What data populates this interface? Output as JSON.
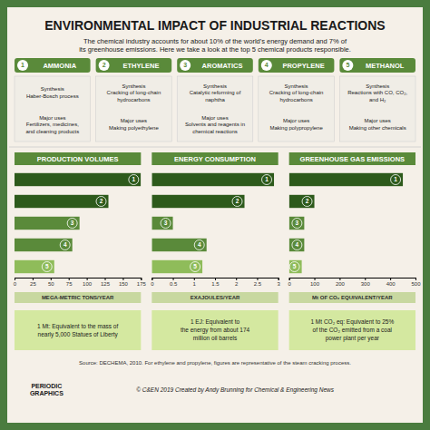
{
  "title": "ENVIRONMENTAL IMPACT OF INDUSTRIAL REACTIONS",
  "subtitle": "The chemical industry accounts for about 10% of the world's energy demand and 7% of\nits greenhouse emissions. Here we take a look at the top 5 chemical products responsible.",
  "chemicals": [
    {
      "number": 1,
      "name": "AMMONIA",
      "synthesis": "Synthesis\nHaber-Bosch process",
      "uses": "Major uses\nFertilizers, medicines,\nand cleaning products"
    },
    {
      "number": 2,
      "name": "ETHYLENE",
      "synthesis": "Synthesis\nCracking of long-chain\nhydrocarbons",
      "uses": "Major uses\nMaking polyethylene"
    },
    {
      "number": 3,
      "name": "AROMATICS",
      "synthesis": "Synthesis\nCatalytic reforming of\nnaphtha",
      "uses": "Major uses\nSolvents and reagents in\nchemical reactions"
    },
    {
      "number": 4,
      "name": "PROPYLENE",
      "synthesis": "Synthesis\nCracking of long-chain\nhydrocarbons",
      "uses": "Major uses\nMaking polypropylene"
    },
    {
      "number": 5,
      "name": "METHANOL",
      "synthesis": "Synthesis\nReactions with CO, CO₂,\nand H₂",
      "uses": "Major uses\nMaking other chemicals"
    }
  ],
  "chart_data": [
    {
      "type": "bar",
      "orientation": "horizontal",
      "title": "PRODUCTION VOLUMES",
      "xlabel": "MEGA-METRIC TONS/YEAR",
      "categories": [
        "1",
        "2",
        "3",
        "4",
        "5"
      ],
      "values": [
        175,
        130,
        90,
        80,
        55
      ],
      "colors": [
        "#2d5a1b",
        "#2d5a1b",
        "#5a8a3a",
        "#5a8a3a",
        "#8fbc5a"
      ],
      "xlim": [
        0,
        175
      ],
      "xticks": [
        0,
        25,
        50,
        75,
        100,
        125,
        150,
        175
      ],
      "tick_labels": "x"
    },
    {
      "type": "bar",
      "orientation": "horizontal",
      "title": "ENERGY CONSUMPTION",
      "xlabel": "EXAJOULES/YEAR",
      "categories": [
        "1",
        "2",
        "3",
        "4",
        "5"
      ],
      "values": [
        2.9,
        2.2,
        0.5,
        1.3,
        1.2
      ],
      "colors": [
        "#2d5a1b",
        "#2d5a1b",
        "#5a8a3a",
        "#5a8a3a",
        "#8fbc5a"
      ],
      "xlim": [
        0,
        3.0
      ],
      "xticks": [
        0,
        0.5,
        1,
        1.5,
        2,
        2.5,
        3
      ],
      "tick_labels": "x"
    },
    {
      "type": "bar",
      "orientation": "horizontal",
      "title": "GREENHOUSE GAS EMISSIONS",
      "xlabel": "Mt OF CO₂ EQUIVALENT/YEAR",
      "categories": [
        "1",
        "2",
        "3",
        "4",
        "5"
      ],
      "values": [
        450,
        100,
        60,
        60,
        50
      ],
      "colors": [
        "#2d5a1b",
        "#2d5a1b",
        "#5a8a3a",
        "#5a8a3a",
        "#8fbc5a"
      ],
      "xlim": [
        0,
        500
      ],
      "xticks": [
        0,
        100,
        200,
        300,
        400,
        500
      ],
      "tick_labels": "x"
    }
  ],
  "notes": [
    "1 Mt: Equivalent to the mass of\nnearly 5,000 Statues of Liberty",
    "1 EJ: Equivalent to\nthe energy from about 174\nmillion oil barrels",
    "1 Mt CO₂ eq: Equivalent to 25%\nof the CO₂ emitted from a coal\npower plant per year"
  ],
  "source": "Source: DECHEMA, 2010. For ethylene and propylene, figures are representative of the steam cracking process.",
  "brand": "PERIODIC\nGRAPHICS",
  "credit": "© C&EN 2019 Created by Andy Brunning for Chemical & Engineering News"
}
